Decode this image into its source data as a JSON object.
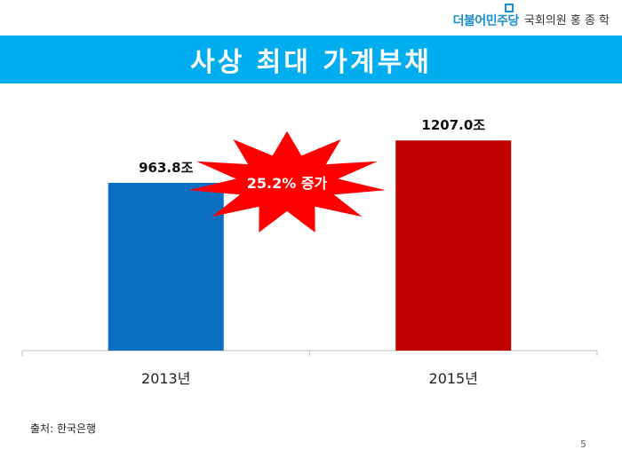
{
  "header": {
    "party_name": "더불어민주당",
    "member_name": "국회의원 홍 종 학",
    "logo_icon": "party-logo-icon"
  },
  "title": "사상 최대 가계부채",
  "chart_data": {
    "type": "bar",
    "categories": [
      "2013년",
      "2015년"
    ],
    "values": [
      963.8,
      1207.0
    ],
    "value_labels": [
      "963.8조",
      "1207.0조"
    ],
    "colors": [
      "#0a6fc0",
      "#c00000"
    ],
    "ylim": [
      0,
      1300
    ],
    "grid": false,
    "legend": "none",
    "xlabel": "",
    "ylabel": "",
    "annotation": {
      "text": "25.2% 증가",
      "color": "#ff0000"
    }
  },
  "footer": {
    "source": "출처: 한국은행",
    "page_number": "5"
  }
}
